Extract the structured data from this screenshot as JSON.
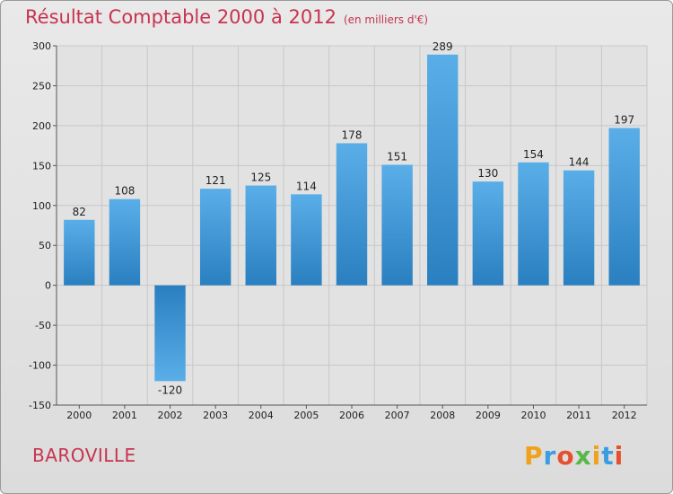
{
  "header": {
    "title": "Résultat Comptable 2000 à 2012",
    "subtitle": "(en milliers d'€)"
  },
  "footer": {
    "commune": "BAROVILLE",
    "brand": {
      "letters": [
        "P",
        "r",
        "o",
        "x",
        "i",
        "t",
        "i"
      ],
      "colors": [
        "#f0a21c",
        "#3a9de0",
        "#e7502d",
        "#58b847",
        "#f0a21c",
        "#3a9de0",
        "#e7502d"
      ]
    }
  },
  "colors": {
    "title": "#c8334f",
    "bar_light": "#5aaee8",
    "bar_dark": "#2a7fc0",
    "grid": "#c8c8c8",
    "plot_bg": "#e2e2e2"
  },
  "chart_data": {
    "type": "bar",
    "title": "Résultat Comptable 2000 à 2012",
    "subtitle": "(en milliers d'€)",
    "xlabel": "",
    "ylabel": "",
    "categories": [
      "2000",
      "2001",
      "2002",
      "2003",
      "2004",
      "2005",
      "2006",
      "2007",
      "2008",
      "2009",
      "2010",
      "2011",
      "2012"
    ],
    "values": [
      82,
      108,
      -120,
      121,
      125,
      114,
      178,
      151,
      289,
      130,
      154,
      144,
      197
    ],
    "ylim": [
      -150,
      300
    ],
    "yticks": [
      300,
      250,
      200,
      150,
      100,
      50,
      0,
      -50,
      -100,
      -150
    ],
    "grid": true
  }
}
